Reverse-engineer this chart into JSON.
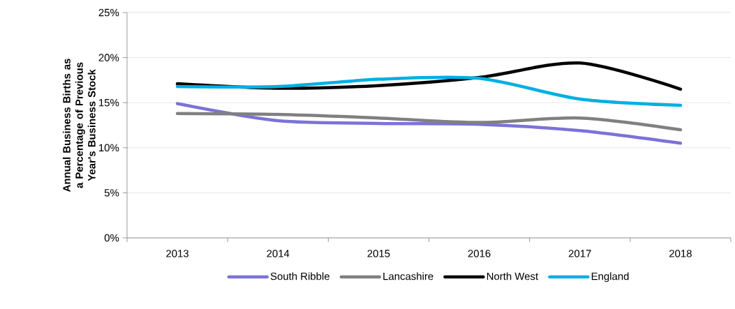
{
  "chart_data": {
    "type": "line",
    "ylabel": "Annual Business Births as a Percentage of Previous Year's Business Stock",
    "categories": [
      "2013",
      "2014",
      "2015",
      "2016",
      "2017",
      "2018"
    ],
    "series": [
      {
        "name": "South Ribble",
        "color": "#7b73d6",
        "values": [
          14.9,
          13.0,
          12.7,
          12.6,
          11.9,
          10.5
        ]
      },
      {
        "name": "Lancashire",
        "color": "#808080",
        "values": [
          13.8,
          13.7,
          13.3,
          12.8,
          13.3,
          12.0
        ]
      },
      {
        "name": "North West",
        "color": "#000000",
        "values": [
          17.1,
          16.6,
          16.9,
          17.8,
          19.4,
          16.5
        ]
      },
      {
        "name": "England",
        "color": "#00b0e0",
        "values": [
          16.8,
          16.8,
          17.6,
          17.7,
          15.4,
          14.7
        ]
      }
    ],
    "ylim": [
      0,
      25
    ],
    "yticks": [
      {
        "value": 0,
        "label": "0%"
      },
      {
        "value": 5,
        "label": "5%"
      },
      {
        "value": 10,
        "label": "10%"
      },
      {
        "value": 15,
        "label": "15%"
      },
      {
        "value": 20,
        "label": "20%"
      },
      {
        "value": 25,
        "label": "25%"
      }
    ],
    "grid": "y",
    "legend": "bottom"
  }
}
